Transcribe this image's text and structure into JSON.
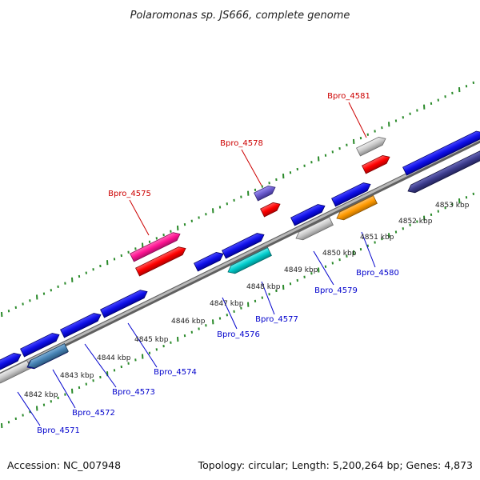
{
  "title": "Polaromonas sp. JS666, complete genome",
  "footer": {
    "accession": "Accession: NC_007948",
    "summary": "Topology: circular; Length: 5,200,264 bp; Genes: 4,873"
  },
  "scale_labels": [
    "4842 kbp",
    "4843 kbp",
    "4844 kbp",
    "4845 kbp",
    "4846 kbp",
    "4847 kbp",
    "4848 kbp",
    "4849 kbp",
    "4850 kbp",
    "4851 kbp",
    "4852 kbp",
    "4853 kbp"
  ],
  "gene_labels_top": [
    "Bpro_4575",
    "Bpro_4578",
    "Bpro_4581"
  ],
  "gene_labels_bottom": [
    "Bpro_4571",
    "Bpro_4572",
    "Bpro_4573",
    "Bpro_4574",
    "Bpro_4576",
    "Bpro_4577",
    "Bpro_4579",
    "Bpro_4580"
  ],
  "colors": {
    "protein_gene": "#1010e8",
    "rna_gene": "#ff0000",
    "pseudo_gene": "#c0c0c0",
    "highlight_magenta": "#ff1493",
    "highlight_cyan": "#00cccc",
    "highlight_orange": "#ff9900",
    "highlight_purple": "#6a5acd",
    "highlight_navy": "#3b3b8c",
    "highlight_steel": "#4682b4",
    "ring_ticks": "#2a8a2a",
    "backbone": "#888888"
  }
}
